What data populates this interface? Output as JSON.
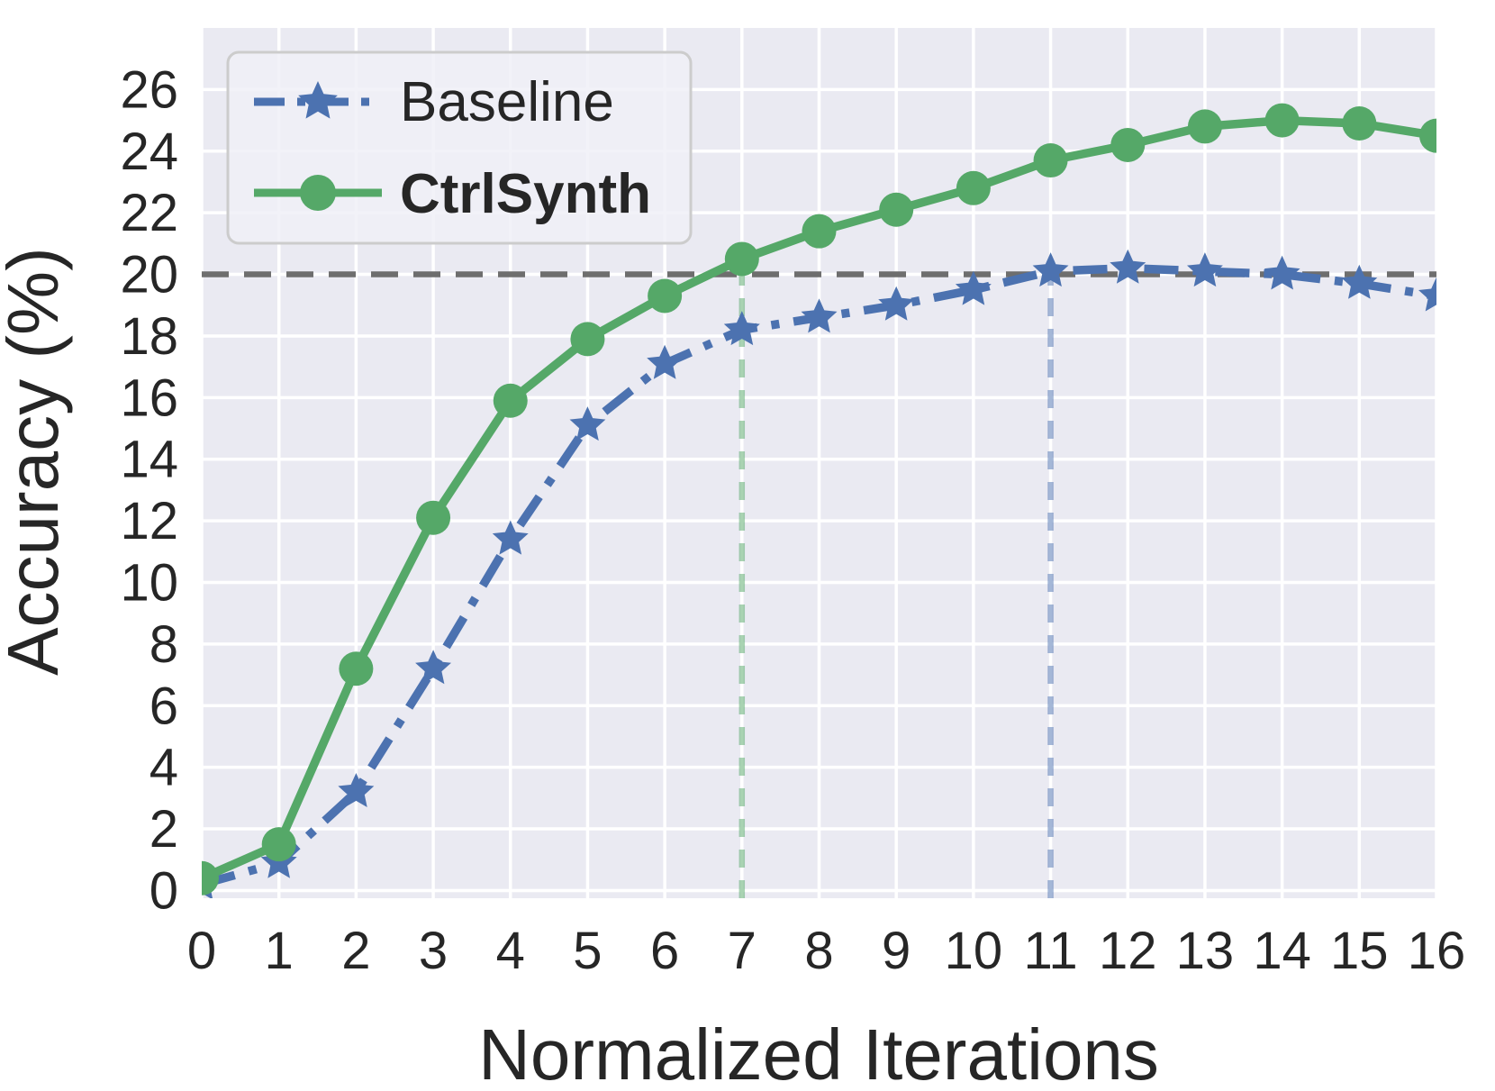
{
  "chart_data": {
    "type": "line",
    "title": "",
    "xlabel": "Normalized Iterations",
    "ylabel": "Accuracy (%)",
    "x": [
      0,
      1,
      2,
      3,
      4,
      5,
      6,
      7,
      8,
      9,
      10,
      11,
      12,
      13,
      14,
      15,
      16
    ],
    "series": [
      {
        "name": "Baseline",
        "color": "#4c72b0",
        "line_style": "dashdot",
        "marker": "star",
        "values": [
          0.2,
          0.9,
          3.2,
          7.2,
          11.4,
          15.1,
          17.1,
          18.2,
          18.6,
          19.0,
          19.5,
          20.1,
          20.2,
          20.1,
          20.0,
          19.7,
          19.3
        ]
      },
      {
        "name": "CtrlSynth",
        "color": "#55a868",
        "line_style": "solid",
        "marker": "circle",
        "values": [
          0.4,
          1.5,
          7.2,
          12.1,
          15.9,
          17.9,
          19.3,
          20.5,
          21.4,
          22.1,
          22.8,
          23.7,
          24.2,
          24.8,
          25.0,
          24.9,
          24.5
        ]
      }
    ],
    "annotations": {
      "hline": {
        "y": 20,
        "color": "#6e6e6e",
        "style": "dashed"
      },
      "vlines": [
        {
          "x": 7,
          "color": "#55a868",
          "style": "dashed",
          "y_top": 20
        },
        {
          "x": 11,
          "color": "#4c72b0",
          "style": "dashed",
          "y_top": 20
        }
      ]
    },
    "x_ticks": [
      0,
      1,
      2,
      3,
      4,
      5,
      6,
      7,
      8,
      9,
      10,
      11,
      12,
      13,
      14,
      15,
      16
    ],
    "y_ticks": [
      0,
      2,
      4,
      6,
      8,
      10,
      12,
      14,
      16,
      18,
      20,
      22,
      24,
      26
    ],
    "xlim": [
      0,
      16
    ],
    "ylim": [
      -0.25,
      28
    ],
    "grid": true,
    "background_color": "#eaeaf2",
    "gridline_color": "#ffffff",
    "legend": {
      "position": "upper-left",
      "entries": [
        "Baseline",
        "CtrlSynth"
      ]
    }
  }
}
